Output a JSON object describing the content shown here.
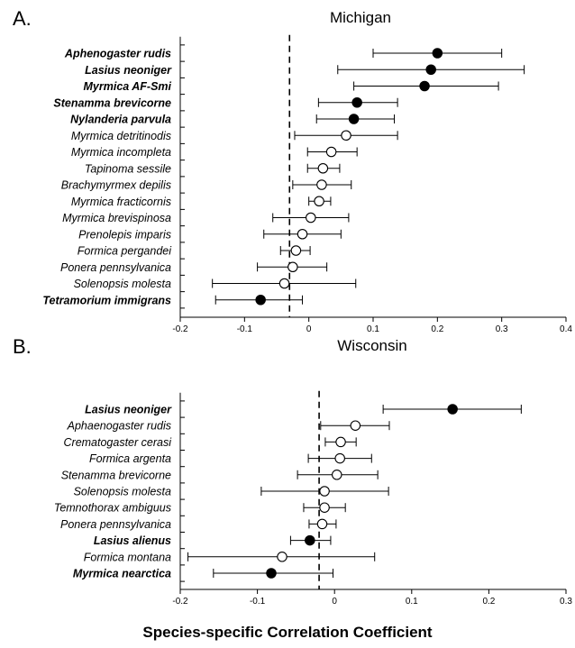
{
  "xlabel": "Species-specific Correlation Coefficient",
  "chart_data": [
    {
      "type": "scatter",
      "panel_letter": "A.",
      "title": "Michigan",
      "xlim": [
        -0.2,
        0.4
      ],
      "xticks": [
        "-0.2",
        "-0.1",
        "0",
        "0.1",
        "0.2",
        "0.3",
        "0.4"
      ],
      "reference_line": -0.03,
      "series": [
        {
          "label": "Aphenogaster rudis",
          "bold": true,
          "filled": true,
          "value": 0.2,
          "low": 0.1,
          "high": 0.3
        },
        {
          "label": "Lasius neoniger",
          "bold": true,
          "filled": true,
          "value": 0.19,
          "low": 0.045,
          "high": 0.335
        },
        {
          "label": "Myrmica AF-Smi",
          "bold": true,
          "filled": true,
          "value": 0.18,
          "low": 0.07,
          "high": 0.295
        },
        {
          "label": "Stenamma brevicorne",
          "bold": true,
          "filled": true,
          "value": 0.075,
          "low": 0.015,
          "high": 0.138
        },
        {
          "label": "Nylanderia parvula",
          "bold": true,
          "filled": true,
          "value": 0.07,
          "low": 0.012,
          "high": 0.133
        },
        {
          "label": "Myrmica detritinodis",
          "bold": false,
          "filled": false,
          "value": 0.058,
          "low": -0.022,
          "high": 0.138
        },
        {
          "label": "Myrmica incompleta",
          "bold": false,
          "filled": false,
          "value": 0.035,
          "low": -0.002,
          "high": 0.075
        },
        {
          "label": "Tapinoma sessile",
          "bold": false,
          "filled": false,
          "value": 0.022,
          "low": -0.002,
          "high": 0.048
        },
        {
          "label": "Brachymyrmex depilis",
          "bold": false,
          "filled": false,
          "value": 0.02,
          "low": -0.025,
          "high": 0.066
        },
        {
          "label": "Myrmica fracticornis",
          "bold": false,
          "filled": false,
          "value": 0.016,
          "low": 0.0,
          "high": 0.034
        },
        {
          "label": "Myrmica brevispinosa",
          "bold": false,
          "filled": false,
          "value": 0.003,
          "low": -0.056,
          "high": 0.062
        },
        {
          "label": "Prenolepis imparis",
          "bold": false,
          "filled": false,
          "value": -0.01,
          "low": -0.07,
          "high": 0.05
        },
        {
          "label": "Formica pergandei",
          "bold": false,
          "filled": false,
          "value": -0.02,
          "low": -0.044,
          "high": 0.002
        },
        {
          "label": "Ponera pennsylvanica",
          "bold": false,
          "filled": false,
          "value": -0.025,
          "low": -0.08,
          "high": 0.028
        },
        {
          "label": "Solenopsis molesta",
          "bold": false,
          "filled": false,
          "value": -0.038,
          "low": -0.15,
          "high": 0.073
        },
        {
          "label": "Tetramorium immigrans",
          "bold": true,
          "filled": true,
          "value": -0.075,
          "low": -0.145,
          "high": -0.01
        }
      ]
    },
    {
      "type": "scatter",
      "panel_letter": "B.",
      "title": "Wisconsin",
      "xlim": [
        -0.2,
        0.3
      ],
      "xticks": [
        "-0.2",
        "-0.1",
        "0",
        "0.1",
        "0.2",
        "0.3"
      ],
      "reference_line": -0.02,
      "series": [
        {
          "label": "Lasius neoniger",
          "bold": true,
          "filled": true,
          "value": 0.153,
          "low": 0.063,
          "high": 0.242
        },
        {
          "label": "Aphaenogaster rudis",
          "bold": false,
          "filled": false,
          "value": 0.027,
          "low": -0.018,
          "high": 0.071
        },
        {
          "label": "Crematogaster cerasi",
          "bold": false,
          "filled": false,
          "value": 0.008,
          "low": -0.012,
          "high": 0.028
        },
        {
          "label": "Formica argenta",
          "bold": false,
          "filled": false,
          "value": 0.007,
          "low": -0.034,
          "high": 0.048
        },
        {
          "label": "Stenamma brevicorne",
          "bold": false,
          "filled": false,
          "value": 0.003,
          "low": -0.048,
          "high": 0.056
        },
        {
          "label": "Solenopsis molesta",
          "bold": false,
          "filled": false,
          "value": -0.013,
          "low": -0.095,
          "high": 0.07
        },
        {
          "label": "Temnothorax ambiguus",
          "bold": false,
          "filled": false,
          "value": -0.013,
          "low": -0.04,
          "high": 0.014
        },
        {
          "label": "Ponera pennsylvanica",
          "bold": false,
          "filled": false,
          "value": -0.016,
          "low": -0.033,
          "high": 0.002
        },
        {
          "label": "Lasius alienus",
          "bold": true,
          "filled": true,
          "value": -0.032,
          "low": -0.057,
          "high": -0.005
        },
        {
          "label": "Formica montana",
          "bold": false,
          "filled": false,
          "value": -0.068,
          "low": -0.19,
          "high": 0.052
        },
        {
          "label": "Myrmica nearctica",
          "bold": true,
          "filled": true,
          "value": -0.082,
          "low": -0.157,
          "high": -0.002
        }
      ]
    }
  ]
}
